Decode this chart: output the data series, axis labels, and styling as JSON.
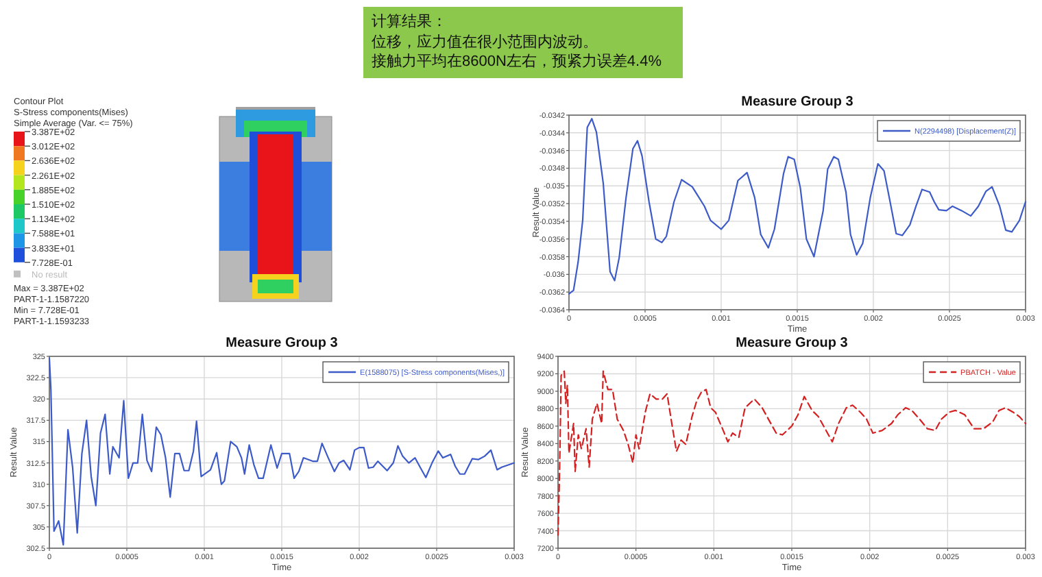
{
  "chart_data": [
    {
      "type": "other",
      "title": "计算结果：",
      "annotations": [
        "位移，应力值在很小范围内波动。",
        "接触力平均在8600N左右，预紧力误差4.4%"
      ],
      "color": "#8cc84b"
    },
    {
      "type": "other",
      "title": "Contour Plot",
      "annotations": [
        "S-Stress components(Mises)",
        "Simple Average (Var. <= 75%)",
        "No result",
        "Max = 3.387E+02",
        "PART-1-1.1587220",
        "Min = 7.728E-01",
        "PART-1-1.1593233"
      ],
      "categories": [
        "3.387E+02",
        "3.012E+02",
        "2.636E+02",
        "2.261E+02",
        "1.885E+02",
        "1.510E+02",
        "1.134E+02",
        "7.588E+01",
        "3.833E+01",
        "7.728E-01"
      ],
      "colors": [
        "#e8141a",
        "#f07820",
        "#f5d21e",
        "#b4e61e",
        "#46d228",
        "#1ec864",
        "#1ec8c8",
        "#1e96e6",
        "#1e50dc",
        "#c0c0c0"
      ]
    },
    {
      "type": "line",
      "title": "Measure Group 3",
      "xlabel": "Time",
      "ylabel": "Result Value",
      "legend": "top right",
      "grid": true,
      "marker": "none",
      "line_style": "solid",
      "xlim": [
        0,
        0.003
      ],
      "xticks": [
        0,
        0.0005,
        0.001,
        0.0015,
        0.002,
        0.0025,
        0.003
      ],
      "ylim": [
        -0.0364,
        -0.0342
      ],
      "yticks": [
        -0.0364,
        -0.0362,
        -0.036,
        -0.0358,
        -0.0356,
        -0.0354,
        -0.0352,
        -0.035,
        -0.0348,
        -0.0346,
        -0.0344,
        -0.0342
      ],
      "series": [
        {
          "name": "N(2294498) [Displacement(Z)]",
          "color": "#3c5ac8",
          "x": [
            0,
            3e-05,
            6e-05,
            9e-05,
            0.00012,
            0.00015,
            0.00018,
            0.000225,
            0.00027,
            0.0003,
            0.00033,
            0.000375,
            0.00042,
            0.00045,
            0.00048,
            0.000526,
            0.00057,
            0.00061,
            0.00064,
            0.00069,
            0.00074,
            0.00081,
            0.00089,
            0.00093,
            0.001,
            0.00105,
            0.00111,
            0.00117,
            0.00122,
            0.00126,
            0.00131,
            0.00135,
            0.00141,
            0.00144,
            0.00148,
            0.00152,
            0.00156,
            0.00161,
            0.00167,
            0.0017,
            0.00174,
            0.00177,
            0.00182,
            0.00185,
            0.00189,
            0.00193,
            0.00198,
            0.00203,
            0.00207,
            0.00211,
            0.00215,
            0.00219,
            0.00224,
            0.00228,
            0.00232,
            0.00237,
            0.0024,
            0.00243,
            0.00248,
            0.00252,
            0.00258,
            0.00264,
            0.00269,
            0.00274,
            0.00278,
            0.00283,
            0.00287,
            0.00291,
            0.00296,
            0.003
          ],
          "values": [
            -0.03622,
            -0.03618,
            -0.03586,
            -0.03539,
            -0.03434,
            -0.03424,
            -0.03439,
            -0.03497,
            -0.03597,
            -0.03607,
            -0.03581,
            -0.03513,
            -0.03458,
            -0.03449,
            -0.03466,
            -0.03518,
            -0.0356,
            -0.03564,
            -0.03557,
            -0.03518,
            -0.03493,
            -0.03501,
            -0.03523,
            -0.03539,
            -0.03549,
            -0.03539,
            -0.03494,
            -0.03485,
            -0.03513,
            -0.03555,
            -0.0357,
            -0.03549,
            -0.03486,
            -0.03467,
            -0.0347,
            -0.03502,
            -0.0356,
            -0.0358,
            -0.03528,
            -0.03481,
            -0.03467,
            -0.0347,
            -0.03507,
            -0.03555,
            -0.03578,
            -0.03565,
            -0.03513,
            -0.03475,
            -0.03483,
            -0.03518,
            -0.03554,
            -0.03556,
            -0.03544,
            -0.03523,
            -0.03504,
            -0.03507,
            -0.03518,
            -0.03527,
            -0.03528,
            -0.03523,
            -0.03528,
            -0.03534,
            -0.03523,
            -0.03506,
            -0.03501,
            -0.03523,
            -0.0355,
            -0.03552,
            -0.03539,
            -0.03518
          ]
        }
      ]
    },
    {
      "type": "line",
      "title": "Measure Group 3",
      "xlabel": "Time",
      "ylabel": "Result Value",
      "legend": "top right",
      "grid": true,
      "marker": "none",
      "line_style": "solid",
      "xlim": [
        0,
        0.003
      ],
      "xticks": [
        0,
        0.0005,
        0.001,
        0.0015,
        0.002,
        0.0025,
        0.003
      ],
      "ylim": [
        302.5,
        325
      ],
      "yticks": [
        302.5,
        305,
        307.5,
        310,
        312.5,
        315,
        317.5,
        320,
        322.5,
        325
      ],
      "series": [
        {
          "name": "E(1588075) [S-Stress components(Mises,)]",
          "color": "#3c5ac8",
          "x": [
            0,
            1e-05,
            3e-05,
            6e-05,
            9e-05,
            0.00012,
            0.00015,
            0.00018,
            0.00021,
            0.00024,
            0.00027,
            0.0003,
            0.00033,
            0.00036,
            0.00039,
            0.00041,
            0.00045,
            0.00048,
            0.00051,
            0.00054,
            0.00057,
            0.0006,
            0.00063,
            0.00066,
            0.00069,
            0.00072,
            0.00075,
            0.00078,
            0.00081,
            0.00084,
            0.00087,
            0.0009,
            0.00093,
            0.00095,
            0.00098,
            0.00104,
            0.00108,
            0.00111,
            0.00113,
            0.00117,
            0.00121,
            0.00124,
            0.00126,
            0.00129,
            0.00132,
            0.00135,
            0.00138,
            0.00143,
            0.00147,
            0.0015,
            0.00155,
            0.00158,
            0.00161,
            0.00164,
            0.0017,
            0.00173,
            0.00176,
            0.0018,
            0.00184,
            0.00187,
            0.0019,
            0.00194,
            0.00197,
            0.002,
            0.00203,
            0.00206,
            0.00209,
            0.00212,
            0.00218,
            0.00222,
            0.00225,
            0.00228,
            0.00232,
            0.00236,
            0.00239,
            0.00243,
            0.00247,
            0.00251,
            0.00254,
            0.00259,
            0.00262,
            0.00265,
            0.00268,
            0.00273,
            0.00277,
            0.00281,
            0.00285,
            0.00289,
            0.00292,
            0.003
          ],
          "values": [
            324.8,
            321.1,
            304.5,
            305.7,
            302.9,
            316.4,
            312.0,
            304.3,
            313.6,
            317.5,
            310.9,
            307.5,
            316.0,
            318.2,
            311.2,
            314.4,
            313.1,
            319.8,
            310.7,
            312.5,
            312.5,
            318.2,
            312.8,
            311.5,
            316.7,
            315.8,
            313.1,
            308.5,
            313.6,
            313.6,
            311.6,
            311.6,
            313.9,
            317.4,
            310.9,
            311.7,
            313.7,
            310.0,
            310.4,
            315.0,
            314.4,
            313.1,
            311.2,
            314.6,
            312.3,
            310.7,
            310.7,
            314.6,
            311.9,
            313.6,
            313.6,
            310.7,
            311.5,
            313.1,
            312.7,
            312.7,
            314.8,
            313.1,
            311.5,
            312.5,
            312.8,
            311.7,
            314.0,
            314.3,
            314.3,
            311.9,
            312.0,
            312.7,
            311.6,
            312.5,
            314.5,
            313.3,
            312.5,
            313.1,
            312.1,
            310.8,
            312.5,
            313.9,
            313.1,
            313.5,
            312.1,
            311.2,
            311.2,
            313.0,
            312.9,
            313.3,
            314.0,
            311.7,
            312.0,
            312.5
          ]
        }
      ]
    },
    {
      "type": "line",
      "title": "Measure Group 3",
      "xlabel": "Time",
      "ylabel": "Result Value",
      "legend": "top right",
      "grid": true,
      "marker": "none",
      "line_style": "dashed",
      "xlim": [
        0,
        0.003
      ],
      "xticks": [
        0,
        0.0005,
        0.001,
        0.0015,
        0.002,
        0.0025,
        0.003
      ],
      "ylim": [
        7200,
        9400
      ],
      "yticks": [
        7200,
        7400,
        7600,
        7800,
        8000,
        8200,
        8400,
        8600,
        8800,
        9000,
        9200,
        9400
      ],
      "series": [
        {
          "name": "PBATCH - Value",
          "color": "#d42020",
          "x": [
            0,
            1e-05,
            1.5e-05,
            2e-05,
            4e-05,
            5e-05,
            6e-05,
            7e-05,
            0.0001,
            0.00011,
            0.00013,
            0.00015,
            0.00018,
            0.0002,
            0.00022,
            0.00025,
            0.00028,
            0.00029,
            0.00032,
            0.00035,
            0.00038,
            0.00042,
            0.00045,
            0.00048,
            0.0005,
            0.00052,
            0.00056,
            0.00059,
            0.00063,
            0.00067,
            0.0007,
            0.00073,
            0.00076,
            0.00079,
            0.00082,
            0.00086,
            0.00089,
            0.00092,
            0.00095,
            0.00098,
            0.00101,
            0.00106,
            0.00109,
            0.00112,
            0.00116,
            0.0012,
            0.00126,
            0.00131,
            0.00135,
            0.0014,
            0.00144,
            0.0015,
            0.00154,
            0.00158,
            0.00163,
            0.00167,
            0.00172,
            0.00176,
            0.0018,
            0.00185,
            0.00189,
            0.00194,
            0.00198,
            0.00202,
            0.00208,
            0.00214,
            0.00218,
            0.00223,
            0.00227,
            0.00232,
            0.00237,
            0.00242,
            0.00246,
            0.00251,
            0.00255,
            0.00261,
            0.00267,
            0.00273,
            0.00279,
            0.00283,
            0.00287,
            0.00292,
            0.00296,
            0.003
          ],
          "values": [
            7350,
            8080,
            8600,
            9180,
            9230,
            8860,
            9070,
            8290,
            8630,
            8080,
            8500,
            8340,
            8570,
            8130,
            8680,
            8860,
            8630,
            9230,
            9020,
            9020,
            8680,
            8550,
            8390,
            8180,
            8500,
            8340,
            8760,
            8970,
            8910,
            8910,
            8970,
            8630,
            8310,
            8440,
            8390,
            8710,
            8890,
            8990,
            9020,
            8810,
            8760,
            8550,
            8420,
            8520,
            8470,
            8810,
            8910,
            8810,
            8680,
            8520,
            8500,
            8600,
            8730,
            8940,
            8780,
            8710,
            8550,
            8420,
            8630,
            8810,
            8840,
            8760,
            8680,
            8520,
            8550,
            8630,
            8730,
            8810,
            8780,
            8680,
            8570,
            8550,
            8680,
            8760,
            8780,
            8730,
            8570,
            8570,
            8650,
            8780,
            8810,
            8760,
            8710,
            8630
          ]
        }
      ]
    }
  ]
}
